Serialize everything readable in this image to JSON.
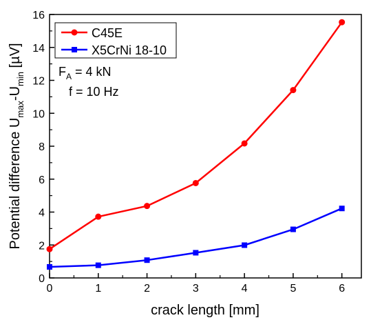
{
  "chart_data": {
    "type": "line",
    "x": [
      0,
      1,
      2,
      3,
      4,
      5,
      6
    ],
    "series": [
      {
        "name": "C45E",
        "values": [
          1.75,
          3.72,
          4.37,
          5.76,
          8.17,
          11.41,
          15.53
        ],
        "color": "#ff0000",
        "marker": "circle"
      },
      {
        "name": "X5CrNi 18-10",
        "values": [
          0.67,
          0.77,
          1.08,
          1.53,
          1.99,
          2.95,
          4.22
        ],
        "color": "#0000ff",
        "marker": "square"
      }
    ],
    "xlabel": "crack length [mm]",
    "ylabel_parts": {
      "main": "Potential difference U",
      "sub1": "max",
      "mid": "-U",
      "sub2": "min",
      "unit": " [µV]"
    },
    "xlim": [
      0,
      6.4
    ],
    "ylim": [
      0,
      16
    ],
    "xticks": [
      "0",
      "1",
      "2",
      "3",
      "4",
      "5",
      "6"
    ],
    "yticks": [
      "0",
      "2",
      "4",
      "6",
      "8",
      "10",
      "12",
      "14",
      "16"
    ],
    "grid": false,
    "legend_position": "top-left",
    "annotation": {
      "force_prefix": "F",
      "force_sub": "A",
      "force_value": " = 4 kN",
      "frequency": "f = 10 Hz"
    }
  }
}
